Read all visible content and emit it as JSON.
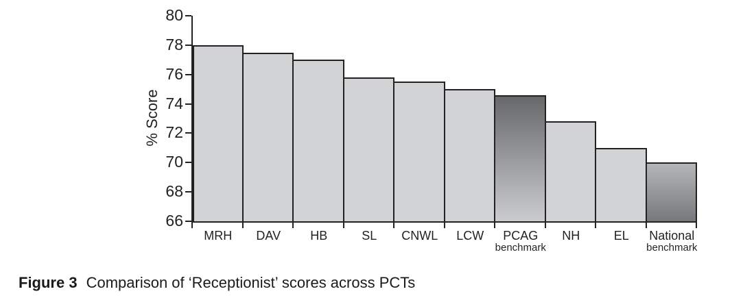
{
  "figure": {
    "caption_label": "Figure 3",
    "caption_text": "Comparison of ‘Receptionist’ scores across PCTs"
  },
  "chart_data": {
    "type": "bar",
    "title": "",
    "xlabel": "",
    "ylabel": "% Score",
    "ylim": [
      66,
      80
    ],
    "yticks": [
      80,
      78,
      76,
      74,
      72,
      70,
      68,
      66
    ],
    "grid": false,
    "legend": false,
    "categories": [
      "MRH",
      "DAV",
      "HB",
      "SL",
      "CNWL",
      "LCW",
      "PCAG benchmark",
      "NH",
      "EL",
      "National benchmark"
    ],
    "category_lines": [
      [
        "MRH"
      ],
      [
        "DAV"
      ],
      [
        "HB"
      ],
      [
        "SL"
      ],
      [
        "CNWL"
      ],
      [
        "LCW"
      ],
      [
        "PCAG",
        "benchmark"
      ],
      [
        "NH"
      ],
      [
        "EL"
      ],
      [
        "National",
        "benchmark"
      ]
    ],
    "values": [
      78,
      77.5,
      77,
      75.8,
      75.5,
      75,
      74.6,
      72.8,
      71,
      70
    ],
    "bar_styles": [
      "flat",
      "flat",
      "flat",
      "flat",
      "flat",
      "flat",
      "gradient-dark-to-light",
      "flat",
      "flat",
      "gradient-light-to-dark"
    ],
    "colors": {
      "bar_fill": "#d2d3d5",
      "line": "#242122",
      "text": "#231f20",
      "gradient_dark_top": "#67686a",
      "gradient_dark_bottom": "#cbcccd",
      "gradient_light_top": "#b4b6b8",
      "gradient_light_bottom": "#76787b"
    }
  }
}
